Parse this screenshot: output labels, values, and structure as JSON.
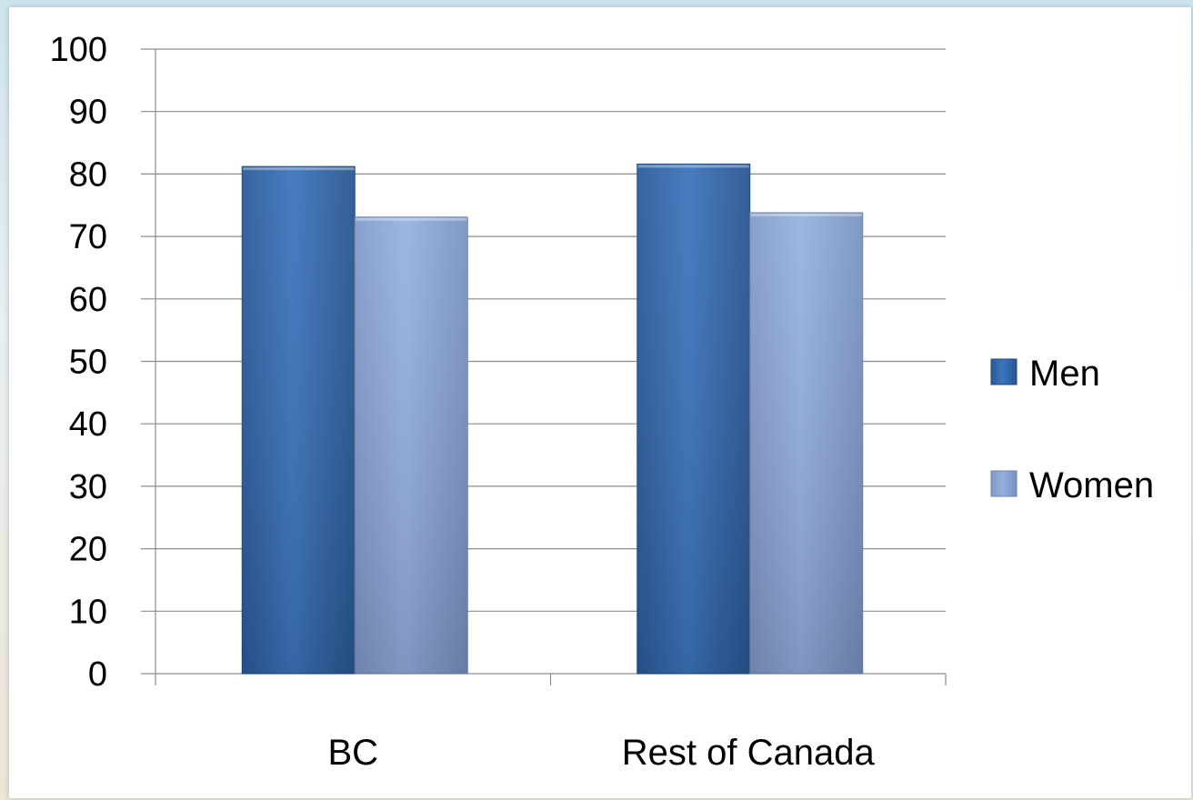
{
  "chart_data": {
    "type": "bar",
    "title": "",
    "xlabel": "",
    "ylabel": "",
    "categories": [
      "BC",
      "Rest of Canada"
    ],
    "series": [
      {
        "name": "Men",
        "values": [
          81.2,
          81.6
        ],
        "color": "#3a6fb5"
      },
      {
        "name": "Women",
        "values": [
          73.1,
          73.8
        ],
        "color": "#8ea8d8"
      }
    ],
    "ylim": [
      0,
      100
    ],
    "yticks": [
      "0",
      "10",
      "20",
      "30",
      "40",
      "50",
      "60",
      "70",
      "80",
      "90",
      "100"
    ],
    "grid": true,
    "legend_position": "right"
  }
}
